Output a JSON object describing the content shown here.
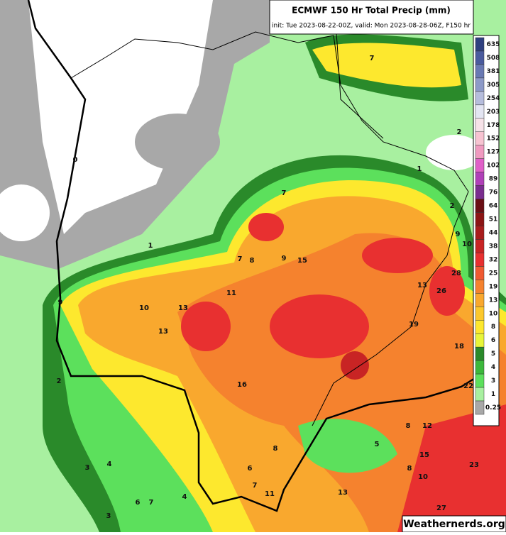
{
  "header": {
    "title": "ECMWF 150 Hr Total Precip (mm)",
    "subtitle": "init: Tue 2023-08-22-00Z, valid: Mon 2023-08-28-06Z, F150 hr"
  },
  "colorbar": [
    {
      "label": "635",
      "color": "#2e3f7f"
    },
    {
      "label": "508",
      "color": "#4a5b9e"
    },
    {
      "label": "381",
      "color": "#6979b3"
    },
    {
      "label": "305",
      "color": "#8d9ac8"
    },
    {
      "label": "254",
      "color": "#b6bddc"
    },
    {
      "label": "203",
      "color": "#e3e5f2"
    },
    {
      "label": "178",
      "color": "#f6e2e8"
    },
    {
      "label": "152",
      "color": "#f7c3d1"
    },
    {
      "label": "127",
      "color": "#f09ac0"
    },
    {
      "label": "102",
      "color": "#e060c8"
    },
    {
      "label": "89",
      "color": "#b040b8"
    },
    {
      "label": "76",
      "color": "#7a2d8f"
    },
    {
      "label": "64",
      "color": "#6a0e14"
    },
    {
      "label": "51",
      "color": "#8c1414"
    },
    {
      "label": "44",
      "color": "#a81c1c"
    },
    {
      "label": "38",
      "color": "#c82424"
    },
    {
      "label": "32",
      "color": "#e83030"
    },
    {
      "label": "25",
      "color": "#f05a32"
    },
    {
      "label": "19",
      "color": "#f5822e"
    },
    {
      "label": "13",
      "color": "#f9a82e"
    },
    {
      "label": "10",
      "color": "#fcc82c"
    },
    {
      "label": "8",
      "color": "#fde82e"
    },
    {
      "label": "6",
      "color": "#e8f53a"
    },
    {
      "label": "5",
      "color": "#2a8a2a"
    },
    {
      "label": "4",
      "color": "#3cb83c"
    },
    {
      "label": "3",
      "color": "#5ce05c"
    },
    {
      "label": "1",
      "color": "#a8f0a0"
    },
    {
      "label": "0.25",
      "color": "#a8a8a8"
    }
  ],
  "map_labels": [
    "7",
    "2",
    "1",
    "2",
    "7",
    "9",
    "10",
    "1",
    "7",
    "8",
    "9",
    "15",
    "28",
    "13",
    "26",
    "11",
    "9",
    "10",
    "13",
    "19",
    "13",
    "18",
    "16",
    "22",
    "2",
    "8",
    "12",
    "5",
    "8",
    "15",
    "3",
    "4",
    "6",
    "8",
    "10",
    "23",
    "7",
    "11",
    "13",
    "4",
    "6",
    "7",
    "3",
    "27",
    "0"
  ],
  "watermark": "Weathernerds.org"
}
